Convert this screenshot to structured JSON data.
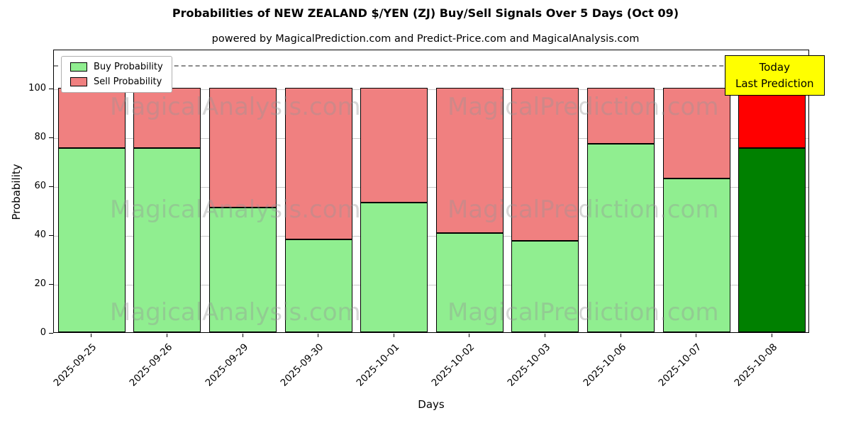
{
  "title": "Probabilities of NEW ZEALAND $/YEN (ZJ) Buy/Sell Signals Over 5 Days (Oct 09)",
  "subtitle": "powered by MagicalPrediction.com and Predict-Price.com and MagicalAnalysis.com",
  "annotation": {
    "line1": "Today",
    "line2": "Last Prediction",
    "bg_color": "#ffff00"
  },
  "watermarks": {
    "left": "MagicalAnalysis.com",
    "right": "MagicalPrediction.com"
  },
  "chart_data": {
    "type": "bar",
    "stacked": true,
    "title": "Probabilities of NEW ZEALAND $/YEN (ZJ) Buy/Sell Signals Over 5 Days (Oct 09)",
    "xlabel": "Days",
    "ylabel": "Probability",
    "categories": [
      "2025-09-25",
      "2025-09-26",
      "2025-09-29",
      "2025-09-30",
      "2025-10-01",
      "2025-10-02",
      "2025-10-03",
      "2025-10-06",
      "2025-10-07",
      "2025-10-08"
    ],
    "series": [
      {
        "name": "Buy Probability",
        "values": [
          75.5,
          75.5,
          51,
          38,
          53,
          40.5,
          37.5,
          77,
          63,
          75.5
        ]
      },
      {
        "name": "Sell Probability",
        "values": [
          24.5,
          24.5,
          49,
          62,
          47,
          59.5,
          62.5,
          23,
          37,
          24.5
        ]
      }
    ],
    "ylim": [
      0,
      116
    ],
    "yticks": [
      0,
      20,
      40,
      60,
      80,
      100
    ],
    "dashed_line_y": 110,
    "grid": "horizontal",
    "legend_position": "upper-left",
    "colors": {
      "buy": "#90ee90",
      "sell": "#f08080",
      "last_bar_buy": "#008000",
      "last_bar_sell": "#ff0000",
      "bar_edge": "#000000",
      "dashed_line": "#8a8a8a",
      "annotation_bg": "#ffff00"
    }
  }
}
